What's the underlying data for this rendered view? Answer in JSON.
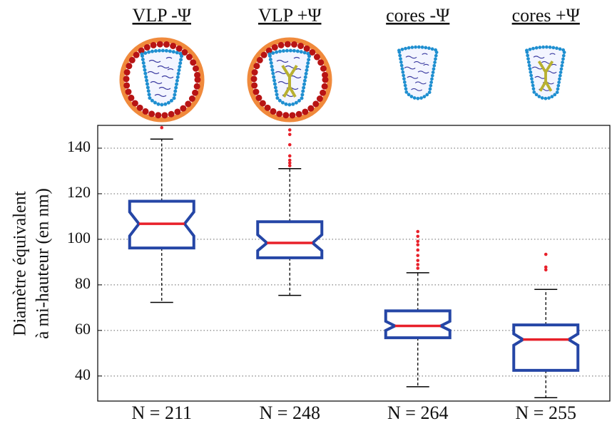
{
  "chart_data": {
    "type": "box",
    "headers": [
      "VLP -Ψ",
      "VLP +Ψ",
      "cores -Ψ",
      "cores +Ψ"
    ],
    "categories": [
      "N = 211",
      "N = 248",
      "N = 264",
      "N = 255"
    ],
    "y_label": [
      "Diamètre équivalent",
      "à mi-hauteur (en nm)"
    ],
    "ylim": [
      29,
      150
    ],
    "yticks": [
      40,
      60,
      80,
      100,
      120,
      140
    ],
    "grid": true,
    "box_color": "#2546a6",
    "median_color": "#e8202a",
    "outlier_color": "#e8202a",
    "boxes": [
      {
        "whislo": 72.3,
        "q1": 96.2,
        "median": 106.8,
        "q3": 116.7,
        "whishi": 144,
        "notch": [
          101.5,
          112
        ],
        "outliers": [
          149
        ]
      },
      {
        "whislo": 75.4,
        "q1": 91.9,
        "median": 98.4,
        "q3": 107.7,
        "whishi": 131,
        "notch": [
          95,
          102
        ],
        "outliers": [
          148,
          146,
          141.5,
          136.6,
          134.7,
          133.5,
          132.3
        ]
      },
      {
        "whislo": 35.3,
        "q1": 56.8,
        "median": 62,
        "q3": 68.6,
        "whishi": 85.3,
        "notch": [
          60,
          64
        ],
        "outliers": [
          103.4,
          101.3,
          99.1,
          97.6,
          95.3,
          92.9,
          90.7,
          88.9,
          87.3
        ]
      },
      {
        "whislo": 30.5,
        "q1": 42.5,
        "median": 56,
        "q3": 62.4,
        "whishi": 78,
        "notch": [
          53.5,
          58.5
        ],
        "outliers": [
          93.4,
          87.8,
          86.6
        ]
      }
    ]
  }
}
